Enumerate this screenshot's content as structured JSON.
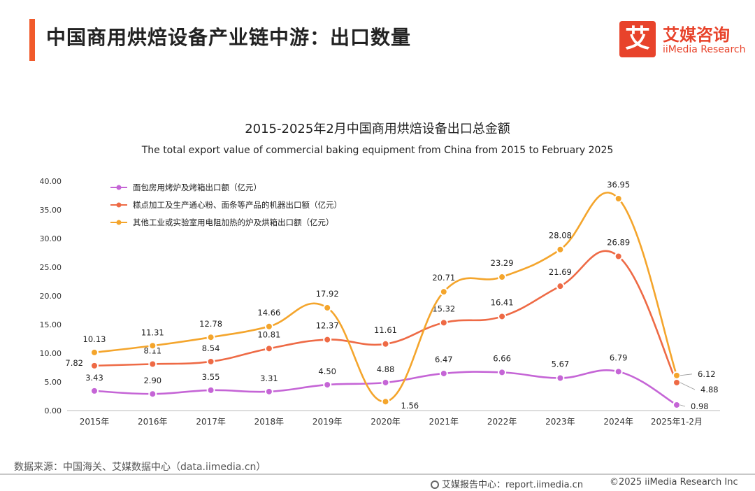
{
  "page": {
    "title": "中国商用烘焙设备产业链中游：出口数量"
  },
  "logo": {
    "mark": "艾",
    "name_cn": "艾媒咨询",
    "name_en": "iiMedia Research"
  },
  "chart_data": {
    "type": "line",
    "title": "2015-2025年2月中国商用烘焙设备出口总金额",
    "subtitle": "The total export value of commercial baking equipment from China from 2015 to February 2025",
    "categories": [
      "2015年",
      "2016年",
      "2017年",
      "2018年",
      "2019年",
      "2020年",
      "2021年",
      "2022年",
      "2023年",
      "2024年",
      "2025年1-2月"
    ],
    "ylim": [
      0,
      40
    ],
    "yticks": [
      "0.00",
      "5.00",
      "10.00",
      "15.00",
      "20.00",
      "25.00",
      "30.00",
      "35.00",
      "40.00"
    ],
    "grid": false,
    "legend_position": "top-left",
    "series": [
      {
        "name": "面包房用烤炉及烤箱出口额（亿元）",
        "color": "#c565d6",
        "values": [
          3.43,
          2.9,
          3.55,
          3.31,
          4.5,
          4.88,
          6.47,
          6.66,
          5.67,
          6.79,
          0.98
        ],
        "labels": [
          "3.43",
          "2.90",
          "3.55",
          "3.31",
          "4.50",
          "4.88",
          "6.47",
          "6.66",
          "5.67",
          "6.79",
          "0.98"
        ]
      },
      {
        "name": "糕点加工及生产通心粉、面条等产品的机器出口额（亿元）",
        "color": "#ee6a45",
        "values": [
          7.82,
          8.11,
          8.54,
          10.81,
          12.37,
          11.61,
          15.32,
          16.41,
          21.69,
          26.89,
          4.88
        ],
        "labels": [
          "7.82",
          "8.11",
          "8.54",
          "10.81",
          "12.37",
          "11.61",
          "15.32",
          "16.41",
          "21.69",
          "26.89",
          "4.88"
        ]
      },
      {
        "name": "其他工业或实验室用电阻加热的炉及烘箱出口额（亿元）",
        "color": "#f4a52c",
        "values": [
          10.13,
          11.31,
          12.78,
          14.66,
          17.92,
          1.56,
          20.71,
          23.29,
          28.08,
          36.95,
          6.12
        ],
        "labels": [
          "10.13",
          "11.31",
          "12.78",
          "14.66",
          "17.92",
          "1.56",
          "20.71",
          "23.29",
          "28.08",
          "36.95",
          "6.12"
        ]
      }
    ]
  },
  "footer": {
    "source": "数据来源：中国海关、艾媒数据中心（data.iimedia.cn）",
    "report": "艾媒报告中心：report.iimedia.cn",
    "copyright": "©2025  iiMedia Research  Inc"
  }
}
